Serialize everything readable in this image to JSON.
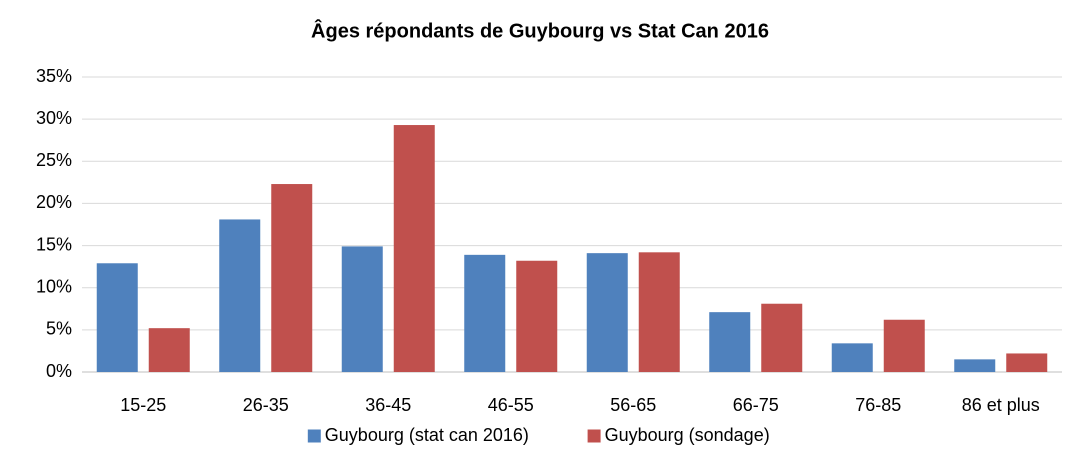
{
  "chart_data": {
    "type": "bar",
    "title": "Âges répondants de Guybourg vs Stat Can 2016",
    "categories": [
      "15-25",
      "26-35",
      "36-45",
      "46-55",
      "56-65",
      "66-75",
      "76-85",
      "86 et plus"
    ],
    "series": [
      {
        "name": "Guybourg (stat can 2016)",
        "color": "#4f81bd",
        "values": [
          12.9,
          18.1,
          14.9,
          13.9,
          14.1,
          7.1,
          3.4,
          1.5
        ]
      },
      {
        "name": "Guybourg (sondage)",
        "color": "#c0504d",
        "values": [
          5.2,
          22.3,
          29.3,
          13.2,
          14.2,
          8.1,
          6.2,
          2.2
        ]
      }
    ],
    "ylim": [
      0,
      35
    ],
    "yticks": [
      {
        "value": 0,
        "label": "0%"
      },
      {
        "value": 5,
        "label": "5%"
      },
      {
        "value": 10,
        "label": "10%"
      },
      {
        "value": 15,
        "label": "15%"
      },
      {
        "value": 20,
        "label": "20%"
      },
      {
        "value": 25,
        "label": "25%"
      },
      {
        "value": 30,
        "label": "30%"
      },
      {
        "value": 35,
        "label": "35%"
      }
    ],
    "grid": true,
    "legend": "bottom"
  }
}
